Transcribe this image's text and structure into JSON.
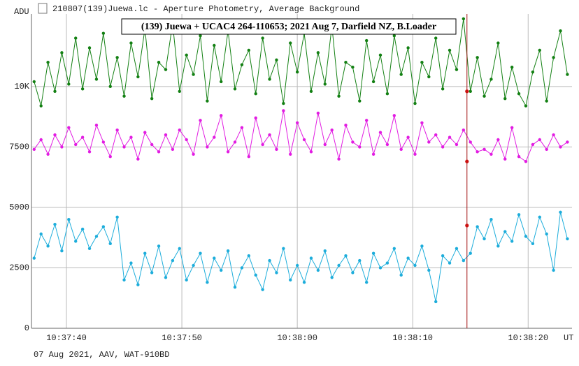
{
  "window_title": "210807(139)Juewa.lc - Aperture Photometry, Average Background",
  "footer": "07 Aug 2021, AAV, WAT-910BD",
  "chart_data": {
    "type": "line",
    "title": "(139) Juewa + UCAC4 264-110653; 2021 Aug 7, Darfield NZ, B.Loader",
    "y_label": "ADU",
    "x_label": "UT",
    "xlim": [
      36.97,
      83.8
    ],
    "xticks": [
      {
        "value": 40,
        "label": "10:37:40"
      },
      {
        "value": 50,
        "label": "10:37:50"
      },
      {
        "value": 60,
        "label": "10:38:00"
      },
      {
        "value": 70,
        "label": "10:38:10"
      },
      {
        "value": 80,
        "label": "10:38:20"
      }
    ],
    "ylim": [
      0,
      13000
    ],
    "yticks": [
      0,
      2500,
      5000,
      7500,
      {
        "value": 10000,
        "label": "10K"
      }
    ],
    "grid": true,
    "x": [
      37.2,
      37.8,
      38.4,
      39.0,
      39.6,
      40.2,
      40.8,
      41.4,
      42.0,
      42.6,
      43.2,
      43.8,
      44.4,
      45.0,
      45.6,
      46.2,
      46.8,
      47.4,
      48.0,
      48.6,
      49.2,
      49.8,
      50.4,
      51.0,
      51.6,
      52.2,
      52.8,
      53.4,
      54.0,
      54.6,
      55.2,
      55.8,
      56.4,
      57.0,
      57.6,
      58.2,
      58.8,
      59.4,
      60.0,
      60.6,
      61.2,
      61.8,
      62.4,
      63.0,
      63.6,
      64.2,
      64.8,
      65.4,
      66.0,
      66.6,
      67.2,
      67.8,
      68.4,
      69.0,
      69.6,
      70.2,
      70.8,
      71.4,
      72.0,
      72.6,
      73.2,
      73.8,
      74.4,
      75.0,
      75.6,
      76.2,
      76.8,
      77.4,
      78.0,
      78.6,
      79.2,
      79.8,
      80.4,
      81.0,
      81.6,
      82.2,
      82.8,
      83.4
    ],
    "series": [
      {
        "color": "#138013",
        "values": [
          10200,
          9200,
          11000,
          9800,
          11400,
          10100,
          12000,
          9900,
          11600,
          10300,
          12200,
          10000,
          11200,
          9600,
          11800,
          10400,
          12400,
          9500,
          11000,
          10700,
          12600,
          9800,
          11300,
          10500,
          12100,
          9400,
          11700,
          10200,
          12300,
          9900,
          10900,
          11500,
          9700,
          12000,
          10300,
          11100,
          9300,
          11800,
          10600,
          12200,
          9800,
          11400,
          10100,
          12500,
          9600,
          11000,
          10800,
          9400,
          11900,
          10200,
          11300,
          9700,
          12100,
          10500,
          11600,
          9300,
          11000,
          10400,
          12000,
          9900,
          11500,
          10700,
          12800,
          9800,
          11200,
          9600,
          10300,
          11800,
          9500,
          10800,
          9700,
          9200,
          10600,
          11500,
          9400,
          11200,
          12300,
          10500
        ]
      },
      {
        "color": "#e21ce2",
        "values": [
          7400,
          7800,
          7200,
          8000,
          7500,
          8300,
          7600,
          7900,
          7300,
          8400,
          7700,
          7100,
          8200,
          7500,
          7900,
          7000,
          8100,
          7600,
          7300,
          8000,
          7400,
          8200,
          7800,
          7200,
          8600,
          7500,
          7900,
          8800,
          7300,
          7700,
          8300,
          7100,
          8700,
          7600,
          8000,
          7400,
          9000,
          7200,
          8500,
          7800,
          7300,
          8900,
          7600,
          8200,
          7000,
          8400,
          7700,
          7500,
          8600,
          7200,
          8100,
          7600,
          8800,
          7400,
          7900,
          7200,
          8500,
          7700,
          8000,
          7500,
          7900,
          7600,
          8200,
          7700,
          7300,
          7400,
          7200,
          7800,
          7000,
          8300,
          7100,
          6900,
          7600,
          7800,
          7400,
          8000,
          7500,
          7700
        ]
      },
      {
        "color": "#1daddb",
        "values": [
          2900,
          3900,
          3400,
          4300,
          3200,
          4500,
          3600,
          4100,
          3300,
          3800,
          4200,
          3500,
          4600,
          2000,
          2700,
          1800,
          3100,
          2300,
          3400,
          2100,
          2800,
          3300,
          2000,
          2600,
          3100,
          1900,
          2900,
          2400,
          3200,
          1700,
          2500,
          3000,
          2200,
          1600,
          2800,
          2300,
          3300,
          2000,
          2600,
          1900,
          2900,
          2400,
          3200,
          2100,
          2600,
          3000,
          2300,
          2800,
          1900,
          3100,
          2500,
          2700,
          3300,
          2200,
          2900,
          2600,
          3400,
          2400,
          1100,
          3000,
          2700,
          3300,
          2800,
          3100,
          4200,
          3700,
          4500,
          3400,
          4000,
          3600,
          4700,
          3800,
          3500,
          4600,
          3900,
          2400,
          4800,
          3700
        ]
      }
    ],
    "markers": {
      "x": 74.7,
      "color": "#cc1010",
      "values": [
        9800,
        6900,
        4250
      ]
    }
  }
}
